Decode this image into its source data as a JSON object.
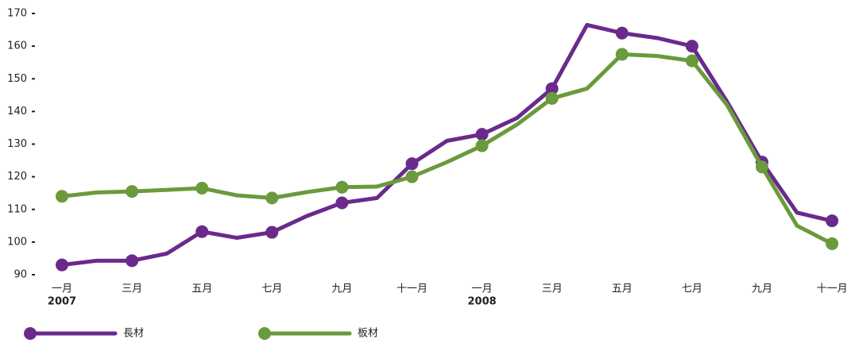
{
  "chart_data": {
    "type": "line",
    "categories": [
      "一月",
      null,
      "三月",
      null,
      "五月",
      null,
      "七月",
      null,
      "九月",
      null,
      "十一月",
      null,
      "一月",
      null,
      "三月",
      null,
      "五月",
      null,
      "七月",
      null,
      "九月",
      null,
      "十一月"
    ],
    "category_years": [
      "2007",
      null,
      null,
      null,
      null,
      null,
      null,
      null,
      null,
      null,
      null,
      null,
      "2008",
      null,
      null,
      null,
      null,
      null,
      null,
      null,
      null,
      null,
      null
    ],
    "series": [
      {
        "name": "長材",
        "color": "#6a2a8c",
        "values": [
          93,
          94.3,
          94.3,
          96.5,
          103.2,
          101.3,
          103,
          108,
          112,
          113.5,
          124,
          131,
          133,
          138,
          147,
          166.5,
          164,
          162.5,
          160,
          143,
          124.5,
          109,
          106.5
        ]
      },
      {
        "name": "板材",
        "color": "#6a9a3c",
        "values": [
          114,
          115.2,
          115.5,
          116,
          116.5,
          114.3,
          113.5,
          115.3,
          116.8,
          117,
          120,
          124.5,
          129.5,
          136,
          144,
          147,
          157.5,
          157,
          155.5,
          142,
          123,
          105,
          99.5
        ]
      }
    ],
    "ylim": [
      90,
      170
    ],
    "yticks": [
      90,
      100,
      110,
      120,
      130,
      140,
      150,
      160,
      170
    ]
  }
}
